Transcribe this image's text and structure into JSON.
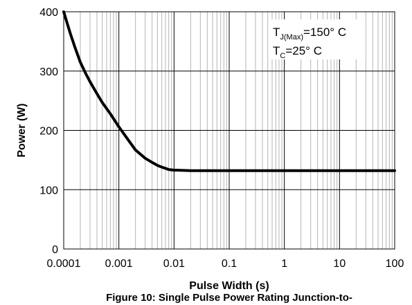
{
  "chart_data": {
    "type": "line",
    "x_scale": "log",
    "xlim": [
      0.0001,
      100
    ],
    "ylim": [
      0,
      400
    ],
    "xlabel": "Pulse Width (s)",
    "ylabel": "Power (W)",
    "x_ticks": [
      "0.0001",
      "0.001",
      "0.01",
      "0.1",
      "1",
      "10",
      "100"
    ],
    "y_ticks": [
      "0",
      "100",
      "200",
      "300",
      "400"
    ],
    "grid": true,
    "caption": "Figure 10: Single Pulse Power Rating Junction-to-",
    "annotation": {
      "line1_main": "T",
      "line1_sub": "J(Max)",
      "line1_rest": "=150° C",
      "line2_main": "T",
      "line2_sub": "C",
      "line2_rest": "=25° C"
    },
    "series": [
      {
        "x": [
          0.0001,
          0.00013,
          0.00016,
          0.0002,
          0.00025,
          0.0003,
          0.0004,
          0.0005,
          0.0007,
          0.001,
          0.0015,
          0.002,
          0.003,
          0.004,
          0.005,
          0.006,
          0.007,
          0.008,
          0.01,
          0.015,
          0.02,
          0.05,
          0.1,
          1,
          10,
          100
        ],
        "y": [
          400,
          365,
          340,
          315,
          296,
          282,
          262,
          247,
          228,
          206,
          183,
          167,
          153,
          146,
          141,
          138,
          136,
          134,
          133,
          132.5,
          132,
          132,
          132,
          132,
          132,
          132
        ]
      }
    ]
  }
}
